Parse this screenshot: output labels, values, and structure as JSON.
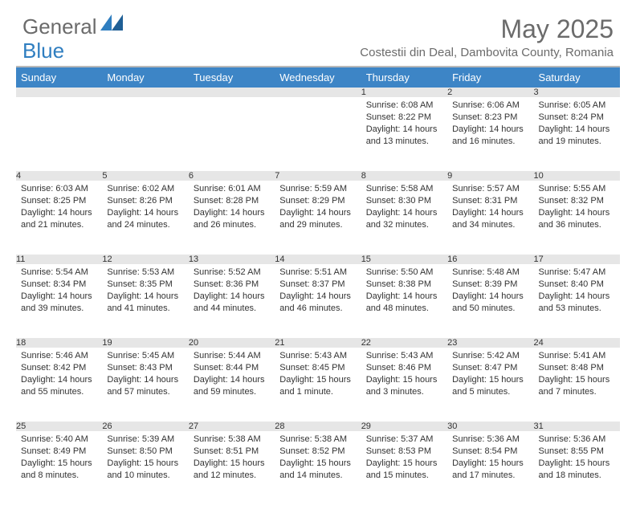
{
  "logo": {
    "word1": "General",
    "word2": "Blue"
  },
  "title": "May 2025",
  "location": "Costestii din Deal, Dambovita County, Romania",
  "colors": {
    "header_bg": "#3d85c6",
    "header_fg": "#ffffff",
    "daynum_bg": "#e6e6e6",
    "text": "#333333",
    "muted": "#6b6b6b",
    "divider": "#b9b9b9",
    "logo_blue": "#2f7ec0"
  },
  "weekdays": [
    "Sunday",
    "Monday",
    "Tuesday",
    "Wednesday",
    "Thursday",
    "Friday",
    "Saturday"
  ],
  "first_weekday_index": 4,
  "days": [
    {
      "n": 1,
      "sunrise": "6:08 AM",
      "sunset": "8:22 PM",
      "daylight": "14 hours and 13 minutes."
    },
    {
      "n": 2,
      "sunrise": "6:06 AM",
      "sunset": "8:23 PM",
      "daylight": "14 hours and 16 minutes."
    },
    {
      "n": 3,
      "sunrise": "6:05 AM",
      "sunset": "8:24 PM",
      "daylight": "14 hours and 19 minutes."
    },
    {
      "n": 4,
      "sunrise": "6:03 AM",
      "sunset": "8:25 PM",
      "daylight": "14 hours and 21 minutes."
    },
    {
      "n": 5,
      "sunrise": "6:02 AM",
      "sunset": "8:26 PM",
      "daylight": "14 hours and 24 minutes."
    },
    {
      "n": 6,
      "sunrise": "6:01 AM",
      "sunset": "8:28 PM",
      "daylight": "14 hours and 26 minutes."
    },
    {
      "n": 7,
      "sunrise": "5:59 AM",
      "sunset": "8:29 PM",
      "daylight": "14 hours and 29 minutes."
    },
    {
      "n": 8,
      "sunrise": "5:58 AM",
      "sunset": "8:30 PM",
      "daylight": "14 hours and 32 minutes."
    },
    {
      "n": 9,
      "sunrise": "5:57 AM",
      "sunset": "8:31 PM",
      "daylight": "14 hours and 34 minutes."
    },
    {
      "n": 10,
      "sunrise": "5:55 AM",
      "sunset": "8:32 PM",
      "daylight": "14 hours and 36 minutes."
    },
    {
      "n": 11,
      "sunrise": "5:54 AM",
      "sunset": "8:34 PM",
      "daylight": "14 hours and 39 minutes."
    },
    {
      "n": 12,
      "sunrise": "5:53 AM",
      "sunset": "8:35 PM",
      "daylight": "14 hours and 41 minutes."
    },
    {
      "n": 13,
      "sunrise": "5:52 AM",
      "sunset": "8:36 PM",
      "daylight": "14 hours and 44 minutes."
    },
    {
      "n": 14,
      "sunrise": "5:51 AM",
      "sunset": "8:37 PM",
      "daylight": "14 hours and 46 minutes."
    },
    {
      "n": 15,
      "sunrise": "5:50 AM",
      "sunset": "8:38 PM",
      "daylight": "14 hours and 48 minutes."
    },
    {
      "n": 16,
      "sunrise": "5:48 AM",
      "sunset": "8:39 PM",
      "daylight": "14 hours and 50 minutes."
    },
    {
      "n": 17,
      "sunrise": "5:47 AM",
      "sunset": "8:40 PM",
      "daylight": "14 hours and 53 minutes."
    },
    {
      "n": 18,
      "sunrise": "5:46 AM",
      "sunset": "8:42 PM",
      "daylight": "14 hours and 55 minutes."
    },
    {
      "n": 19,
      "sunrise": "5:45 AM",
      "sunset": "8:43 PM",
      "daylight": "14 hours and 57 minutes."
    },
    {
      "n": 20,
      "sunrise": "5:44 AM",
      "sunset": "8:44 PM",
      "daylight": "14 hours and 59 minutes."
    },
    {
      "n": 21,
      "sunrise": "5:43 AM",
      "sunset": "8:45 PM",
      "daylight": "15 hours and 1 minute."
    },
    {
      "n": 22,
      "sunrise": "5:43 AM",
      "sunset": "8:46 PM",
      "daylight": "15 hours and 3 minutes."
    },
    {
      "n": 23,
      "sunrise": "5:42 AM",
      "sunset": "8:47 PM",
      "daylight": "15 hours and 5 minutes."
    },
    {
      "n": 24,
      "sunrise": "5:41 AM",
      "sunset": "8:48 PM",
      "daylight": "15 hours and 7 minutes."
    },
    {
      "n": 25,
      "sunrise": "5:40 AM",
      "sunset": "8:49 PM",
      "daylight": "15 hours and 8 minutes."
    },
    {
      "n": 26,
      "sunrise": "5:39 AM",
      "sunset": "8:50 PM",
      "daylight": "15 hours and 10 minutes."
    },
    {
      "n": 27,
      "sunrise": "5:38 AM",
      "sunset": "8:51 PM",
      "daylight": "15 hours and 12 minutes."
    },
    {
      "n": 28,
      "sunrise": "5:38 AM",
      "sunset": "8:52 PM",
      "daylight": "15 hours and 14 minutes."
    },
    {
      "n": 29,
      "sunrise": "5:37 AM",
      "sunset": "8:53 PM",
      "daylight": "15 hours and 15 minutes."
    },
    {
      "n": 30,
      "sunrise": "5:36 AM",
      "sunset": "8:54 PM",
      "daylight": "15 hours and 17 minutes."
    },
    {
      "n": 31,
      "sunrise": "5:36 AM",
      "sunset": "8:55 PM",
      "daylight": "15 hours and 18 minutes."
    }
  ]
}
